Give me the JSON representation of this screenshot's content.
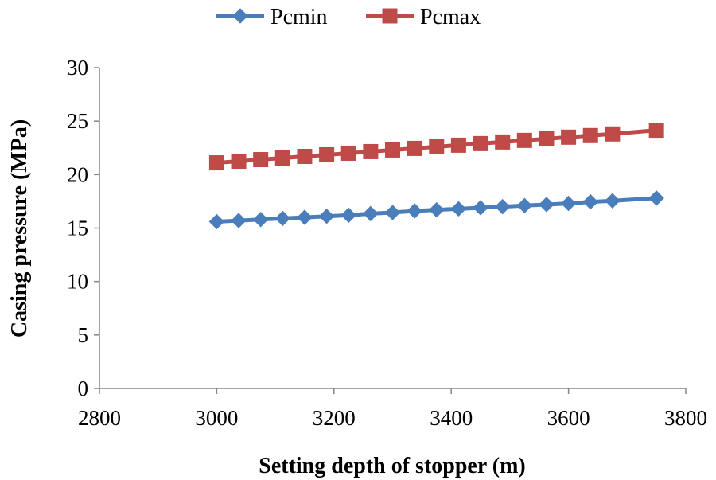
{
  "chart_data": {
    "type": "line",
    "title": "",
    "xlabel": "Setting depth of stopper (m)",
    "ylabel": "Casing pressure (MPa)",
    "xlim": [
      2800,
      3800
    ],
    "ylim": [
      0,
      30
    ],
    "xticks": [
      2800,
      3000,
      3200,
      3400,
      3600,
      3800
    ],
    "yticks": [
      0,
      5,
      10,
      15,
      20,
      25,
      30
    ],
    "grid": false,
    "legend": "top-center",
    "x": [
      3000,
      3037.5,
      3075,
      3112.5,
      3150,
      3187.5,
      3225,
      3262.5,
      3300,
      3337.5,
      3375,
      3412.5,
      3450,
      3487.5,
      3525,
      3562.5,
      3600,
      3637.5,
      3675,
      3750
    ],
    "series": [
      {
        "name": "Pcmin",
        "color": "#4a7ebb",
        "marker": "diamond",
        "values": [
          15.6,
          15.7,
          15.8,
          15.9,
          16.0,
          16.1,
          16.2,
          16.35,
          16.45,
          16.6,
          16.7,
          16.8,
          16.9,
          17.0,
          17.1,
          17.2,
          17.3,
          17.45,
          17.55,
          17.8
        ]
      },
      {
        "name": "Pcmax",
        "color": "#be4b48",
        "marker": "square",
        "values": [
          21.1,
          21.25,
          21.4,
          21.55,
          21.7,
          21.85,
          22.0,
          22.15,
          22.3,
          22.45,
          22.6,
          22.75,
          22.9,
          23.05,
          23.2,
          23.35,
          23.5,
          23.65,
          23.8,
          24.15
        ]
      }
    ]
  }
}
